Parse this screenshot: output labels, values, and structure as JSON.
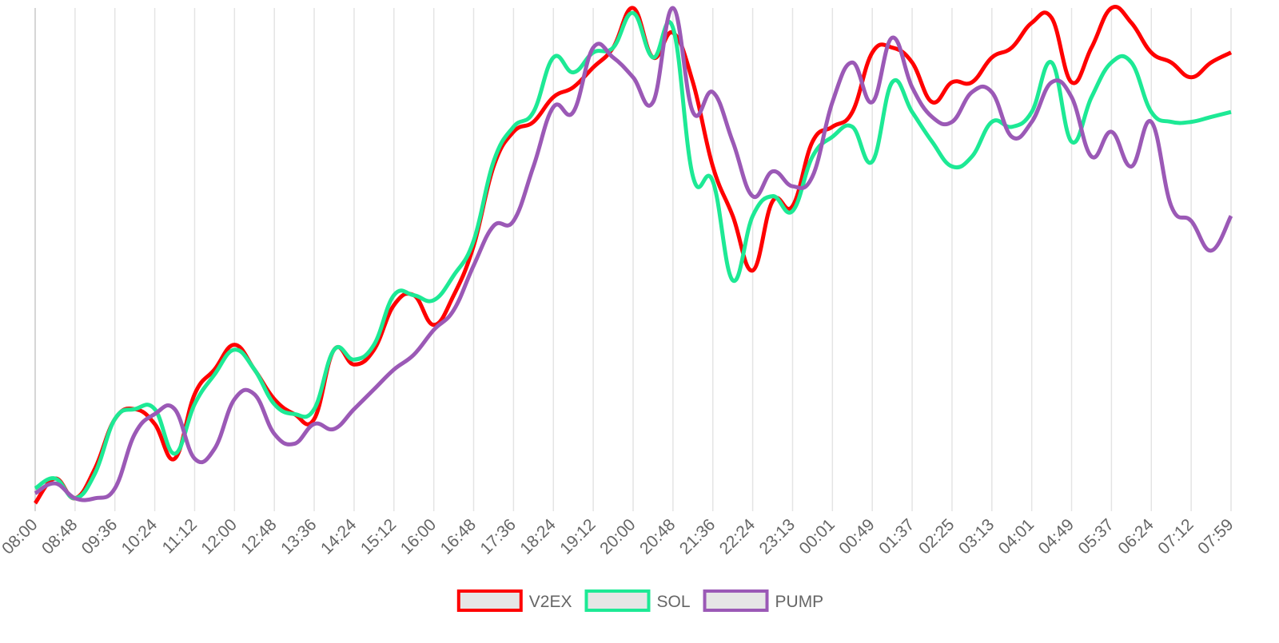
{
  "chart_data": {
    "type": "line",
    "categories": [
      "08:00",
      null,
      "08:48",
      null,
      "09:36",
      null,
      "10:24",
      null,
      "11:12",
      null,
      "12:00",
      null,
      "12:48",
      null,
      "13:36",
      null,
      "14:24",
      null,
      "15:12",
      null,
      "16:00",
      null,
      "16:48",
      null,
      "17:36",
      null,
      "18:24",
      null,
      "19:12",
      null,
      "20:00",
      null,
      "20:48",
      null,
      "21:36",
      null,
      "22:24",
      null,
      "23:13",
      null,
      "00:01",
      null,
      "00:49",
      null,
      "01:37",
      null,
      "02:25",
      null,
      "03:13",
      null,
      "04:01",
      null,
      "04:49",
      null,
      "05:37",
      null,
      "06:24",
      null,
      "07:12",
      null,
      "07:59"
    ],
    "series": [
      {
        "name": "V2EX",
        "color": "#ff0000",
        "values": [
          0,
          5,
          1,
          7,
          17,
          19,
          16,
          9,
          22,
          27,
          32,
          27,
          21,
          18,
          17,
          31,
          28,
          31,
          40,
          42,
          36,
          42,
          52,
          68,
          75,
          77,
          82,
          84,
          88,
          92,
          100,
          90,
          95,
          85,
          68,
          58,
          47,
          61,
          60,
          73,
          76,
          79,
          91,
          92,
          89,
          81,
          85,
          85,
          90,
          92,
          97,
          98,
          85,
          92,
          100,
          97,
          91,
          89,
          86,
          89,
          91
        ]
      },
      {
        "name": "SOL",
        "color": "#1de995",
        "values": [
          3,
          5,
          1,
          6,
          17,
          19,
          19,
          10,
          20,
          26,
          31,
          27,
          20,
          18,
          19,
          31,
          29,
          32,
          42,
          42,
          41,
          46,
          53,
          69,
          76,
          79,
          90,
          87,
          91,
          92,
          99,
          90,
          96,
          66,
          65,
          45,
          58,
          62,
          59,
          70,
          74,
          76,
          69,
          85,
          79,
          73,
          68,
          70,
          77,
          76,
          79,
          89,
          73,
          82,
          89,
          89,
          79,
          77,
          77,
          78,
          79
        ]
      },
      {
        "name": "PUMP",
        "color": "#9b59b6",
        "values": [
          2,
          4,
          1,
          1,
          3,
          14,
          18,
          19,
          9,
          11,
          21,
          22,
          14,
          12,
          16,
          15,
          19,
          23,
          27,
          30,
          35,
          39,
          48,
          56,
          57,
          68,
          80,
          79,
          92,
          90,
          86,
          81,
          100,
          79,
          83,
          73,
          62,
          67,
          64,
          66,
          81,
          89,
          81,
          94,
          84,
          78,
          77,
          83,
          83,
          74,
          77,
          85,
          82,
          70,
          75,
          68,
          77,
          60,
          57,
          51,
          58
        ]
      }
    ],
    "grid": true
  }
}
